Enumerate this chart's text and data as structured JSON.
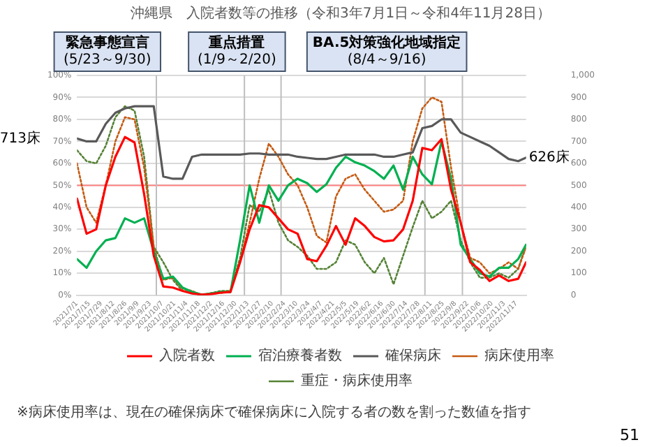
{
  "chart_data": {
    "type": "line",
    "title": "沖縄県　入院者数等の推移（令和3年7月1日～令和4年11月28日）",
    "x": [
      "2021-07-01",
      "2021-07-12",
      "2021-07-23",
      "2021-08-03",
      "2021-08-14",
      "2021-08-25",
      "2021-09-05",
      "2021-09-16",
      "2021-09-27",
      "2021-10-08",
      "2021-10-19",
      "2021-10-30",
      "2021-11-10",
      "2021-11-21",
      "2021-12-02",
      "2021-12-13",
      "2021-12-24",
      "2022-01-04",
      "2022-01-15",
      "2022-01-26",
      "2022-02-06",
      "2022-02-17",
      "2022-02-28",
      "2022-03-11",
      "2022-03-22",
      "2022-04-02",
      "2022-04-13",
      "2022-04-24",
      "2022-05-05",
      "2022-05-16",
      "2022-05-27",
      "2022-06-07",
      "2022-06-18",
      "2022-06-29",
      "2022-07-10",
      "2022-07-21",
      "2022-08-01",
      "2022-08-12",
      "2022-08-23",
      "2022-09-03",
      "2022-09-14",
      "2022-09-25",
      "2022-10-06",
      "2022-10-17",
      "2022-10-28",
      "2022-11-08",
      "2022-11-19",
      "2022-11-28"
    ],
    "series": [
      {
        "name": "入院者数",
        "color": "#ff0000",
        "axis": "y2",
        "values": [
          440,
          280,
          300,
          500,
          630,
          720,
          695,
          460,
          180,
          40,
          35,
          20,
          8,
          3,
          5,
          12,
          15,
          150,
          300,
          410,
          400,
          350,
          300,
          280,
          165,
          155,
          225,
          315,
          230,
          350,
          315,
          265,
          245,
          250,
          300,
          430,
          670,
          660,
          710,
          480,
          330,
          150,
          115,
          65,
          90,
          65,
          75,
          150
        ]
      },
      {
        "name": "宿泊療養者数",
        "color": "#00b050",
        "axis": "y2",
        "values": [
          165,
          125,
          200,
          250,
          260,
          350,
          330,
          350,
          200,
          75,
          85,
          35,
          15,
          3,
          8,
          15,
          15,
          250,
          500,
          330,
          500,
          430,
          500,
          530,
          510,
          470,
          505,
          580,
          630,
          605,
          590,
          565,
          530,
          590,
          480,
          630,
          550,
          505,
          700,
          530,
          230,
          165,
          100,
          85,
          125,
          125,
          165,
          230
        ]
      },
      {
        "name": "確保病床",
        "color": "#595959",
        "axis": "y2",
        "values": [
          713,
          700,
          700,
          780,
          830,
          850,
          860,
          860,
          860,
          540,
          530,
          530,
          630,
          640,
          640,
          640,
          640,
          640,
          645,
          645,
          640,
          640,
          640,
          630,
          625,
          620,
          620,
          630,
          640,
          640,
          640,
          640,
          630,
          630,
          640,
          650,
          760,
          770,
          800,
          800,
          740,
          720,
          700,
          680,
          650,
          620,
          610,
          626
        ]
      },
      {
        "name": "病床使用率",
        "color": "#c55a11",
        "line_style": "dotted",
        "values": [
          60,
          40,
          33,
          50,
          70,
          81,
          80,
          58,
          22,
          7,
          8,
          3,
          2,
          0,
          1,
          1,
          2,
          15,
          33,
          53,
          69,
          63,
          55,
          50,
          40,
          27,
          24,
          45,
          53,
          55,
          48,
          43,
          38,
          39,
          43,
          70,
          85,
          90,
          88,
          58,
          33,
          17,
          15,
          10,
          12,
          15,
          12,
          22
        ]
      },
      {
        "name": "重症・病床使用率",
        "color": "#548235",
        "line_style": "dotted",
        "values": [
          66,
          61,
          60,
          68,
          81,
          86,
          84,
          63,
          22,
          15,
          7,
          2,
          1,
          0,
          1,
          2,
          2,
          17,
          41,
          38,
          48,
          33,
          25,
          22,
          18,
          12,
          12,
          15,
          25,
          23,
          15,
          10,
          17,
          5,
          18,
          31,
          43,
          35,
          38,
          43,
          25,
          15,
          8,
          8,
          10,
          8,
          12,
          23
        ]
      }
    ],
    "xlim": [
      "2021-07-01",
      "2022-11-28"
    ],
    "xticks": [
      {
        "value": "2021-07-01",
        "label": "2021/7/1"
      },
      {
        "value": "2021-07-15",
        "label": "2021/7/15"
      },
      {
        "value": "2021-07-29",
        "label": "2021/7/29"
      },
      {
        "value": "2021-08-12",
        "label": "2021/8/12"
      },
      {
        "value": "2021-08-26",
        "label": "2021/8/26"
      },
      {
        "value": "2021-09-09",
        "label": "2021/9/9"
      },
      {
        "value": "2021-09-23",
        "label": "2021/9/23"
      },
      {
        "value": "2021-10-07",
        "label": "2021/10/7"
      },
      {
        "value": "2021-10-21",
        "label": "2021/10/21"
      },
      {
        "value": "2021-11-04",
        "label": "2021/11/4"
      },
      {
        "value": "2021-11-18",
        "label": "2021/11/18"
      },
      {
        "value": "2021-12-02",
        "label": "2021/12/2"
      },
      {
        "value": "2021-12-16",
        "label": "2021/12/16"
      },
      {
        "value": "2021-12-30",
        "label": "2021/12/30"
      },
      {
        "value": "2022-01-13",
        "label": "2022/1/13"
      },
      {
        "value": "2022-01-27",
        "label": "2022/1/27"
      },
      {
        "value": "2022-02-10",
        "label": "2022/2/10"
      },
      {
        "value": "2022-02-24",
        "label": "2022/2/24"
      },
      {
        "value": "2022-03-10",
        "label": "2022/3/10"
      },
      {
        "value": "2022-03-24",
        "label": "2022/3/24"
      },
      {
        "value": "2022-04-07",
        "label": "2022/4/7"
      },
      {
        "value": "2022-04-21",
        "label": "2022/4/21"
      },
      {
        "value": "2022-05-05",
        "label": "2022/5/5"
      },
      {
        "value": "2022-05-19",
        "label": "2022/5/19"
      },
      {
        "value": "2022-06-02",
        "label": "2022/6/2"
      },
      {
        "value": "2022-06-16",
        "label": "2022/6/16"
      },
      {
        "value": "2022-06-30",
        "label": "2022/6/30"
      },
      {
        "value": "2022-07-14",
        "label": "2022/7/14"
      },
      {
        "value": "2022-07-28",
        "label": "2022/7/28"
      },
      {
        "value": "2022-08-11",
        "label": "2022/8/11"
      },
      {
        "value": "2022-08-25",
        "label": "2022/8/25"
      },
      {
        "value": "2022-09-08",
        "label": "2022/9/8"
      },
      {
        "value": "2022-09-22",
        "label": "2022/9/22"
      },
      {
        "value": "2022-10-06",
        "label": "2022/10/6"
      },
      {
        "value": "2022-10-20",
        "label": "2022/10/20"
      },
      {
        "value": "2022-11-03",
        "label": "2022/11/3"
      },
      {
        "value": "2022-11-17",
        "label": "2022/11/17"
      }
    ],
    "ylim": [
      0,
      100
    ],
    "yticks": [
      {
        "value": 0,
        "label": "0%"
      },
      {
        "value": 10,
        "label": "10%"
      },
      {
        "value": 20,
        "label": "20%"
      },
      {
        "value": 30,
        "label": "30%"
      },
      {
        "value": 40,
        "label": "40%"
      },
      {
        "value": 50,
        "label": "50%"
      },
      {
        "value": 60,
        "label": "60%"
      },
      {
        "value": 70,
        "label": "70%"
      },
      {
        "value": 80,
        "label": "80%"
      },
      {
        "value": 90,
        "label": "90%"
      },
      {
        "value": 100,
        "label": "100%"
      }
    ],
    "y2lim": [
      0,
      1000
    ],
    "y2ticks": [
      {
        "value": 0,
        "label": "0"
      },
      {
        "value": 100,
        "label": "100"
      },
      {
        "value": 200,
        "label": "200"
      },
      {
        "value": 300,
        "label": "300"
      },
      {
        "value": 400,
        "label": "400"
      },
      {
        "value": 500,
        "label": "500"
      },
      {
        "value": 600,
        "label": "600"
      },
      {
        "value": 700,
        "label": "700"
      },
      {
        "value": 800,
        "label": "800"
      },
      {
        "value": 900,
        "label": "900"
      },
      {
        "value": 1000,
        "label": "1,000"
      }
    ],
    "ref_lines": [
      {
        "axis": "y",
        "value": 50,
        "color": "#ff8080"
      },
      {
        "axis": "x",
        "value": "2021-09-30",
        "color": "#bfbfbf",
        "label": "緊急事態宣言\n(5/23～9/30)"
      },
      {
        "axis": "x",
        "value": "2022-01-09",
        "color": "#bfbfbf"
      },
      {
        "axis": "x",
        "value": "2022-02-20",
        "color": "#bfbfbf",
        "label": "重点措置\n(1/9～2/20)"
      },
      {
        "axis": "x",
        "value": "2022-08-04",
        "color": "#bfbfbf"
      },
      {
        "axis": "x",
        "value": "2022-09-16",
        "color": "#bfbfbf",
        "label": "BA.5対策強化地域指定\n(8/4～9/16)"
      }
    ],
    "annotations": [
      "※病床使用率は、現在の確保病床で確保病床に入院する者の数を割った数値を指す",
      "51",
      {
        "text": "713床",
        "x": "2021-07-01",
        "y": 71.3
      },
      {
        "text": "626床",
        "x": "2022-11-28",
        "y": 62.6
      }
    ],
    "grid": "y",
    "legend": "bottom",
    "marker": "none"
  }
}
